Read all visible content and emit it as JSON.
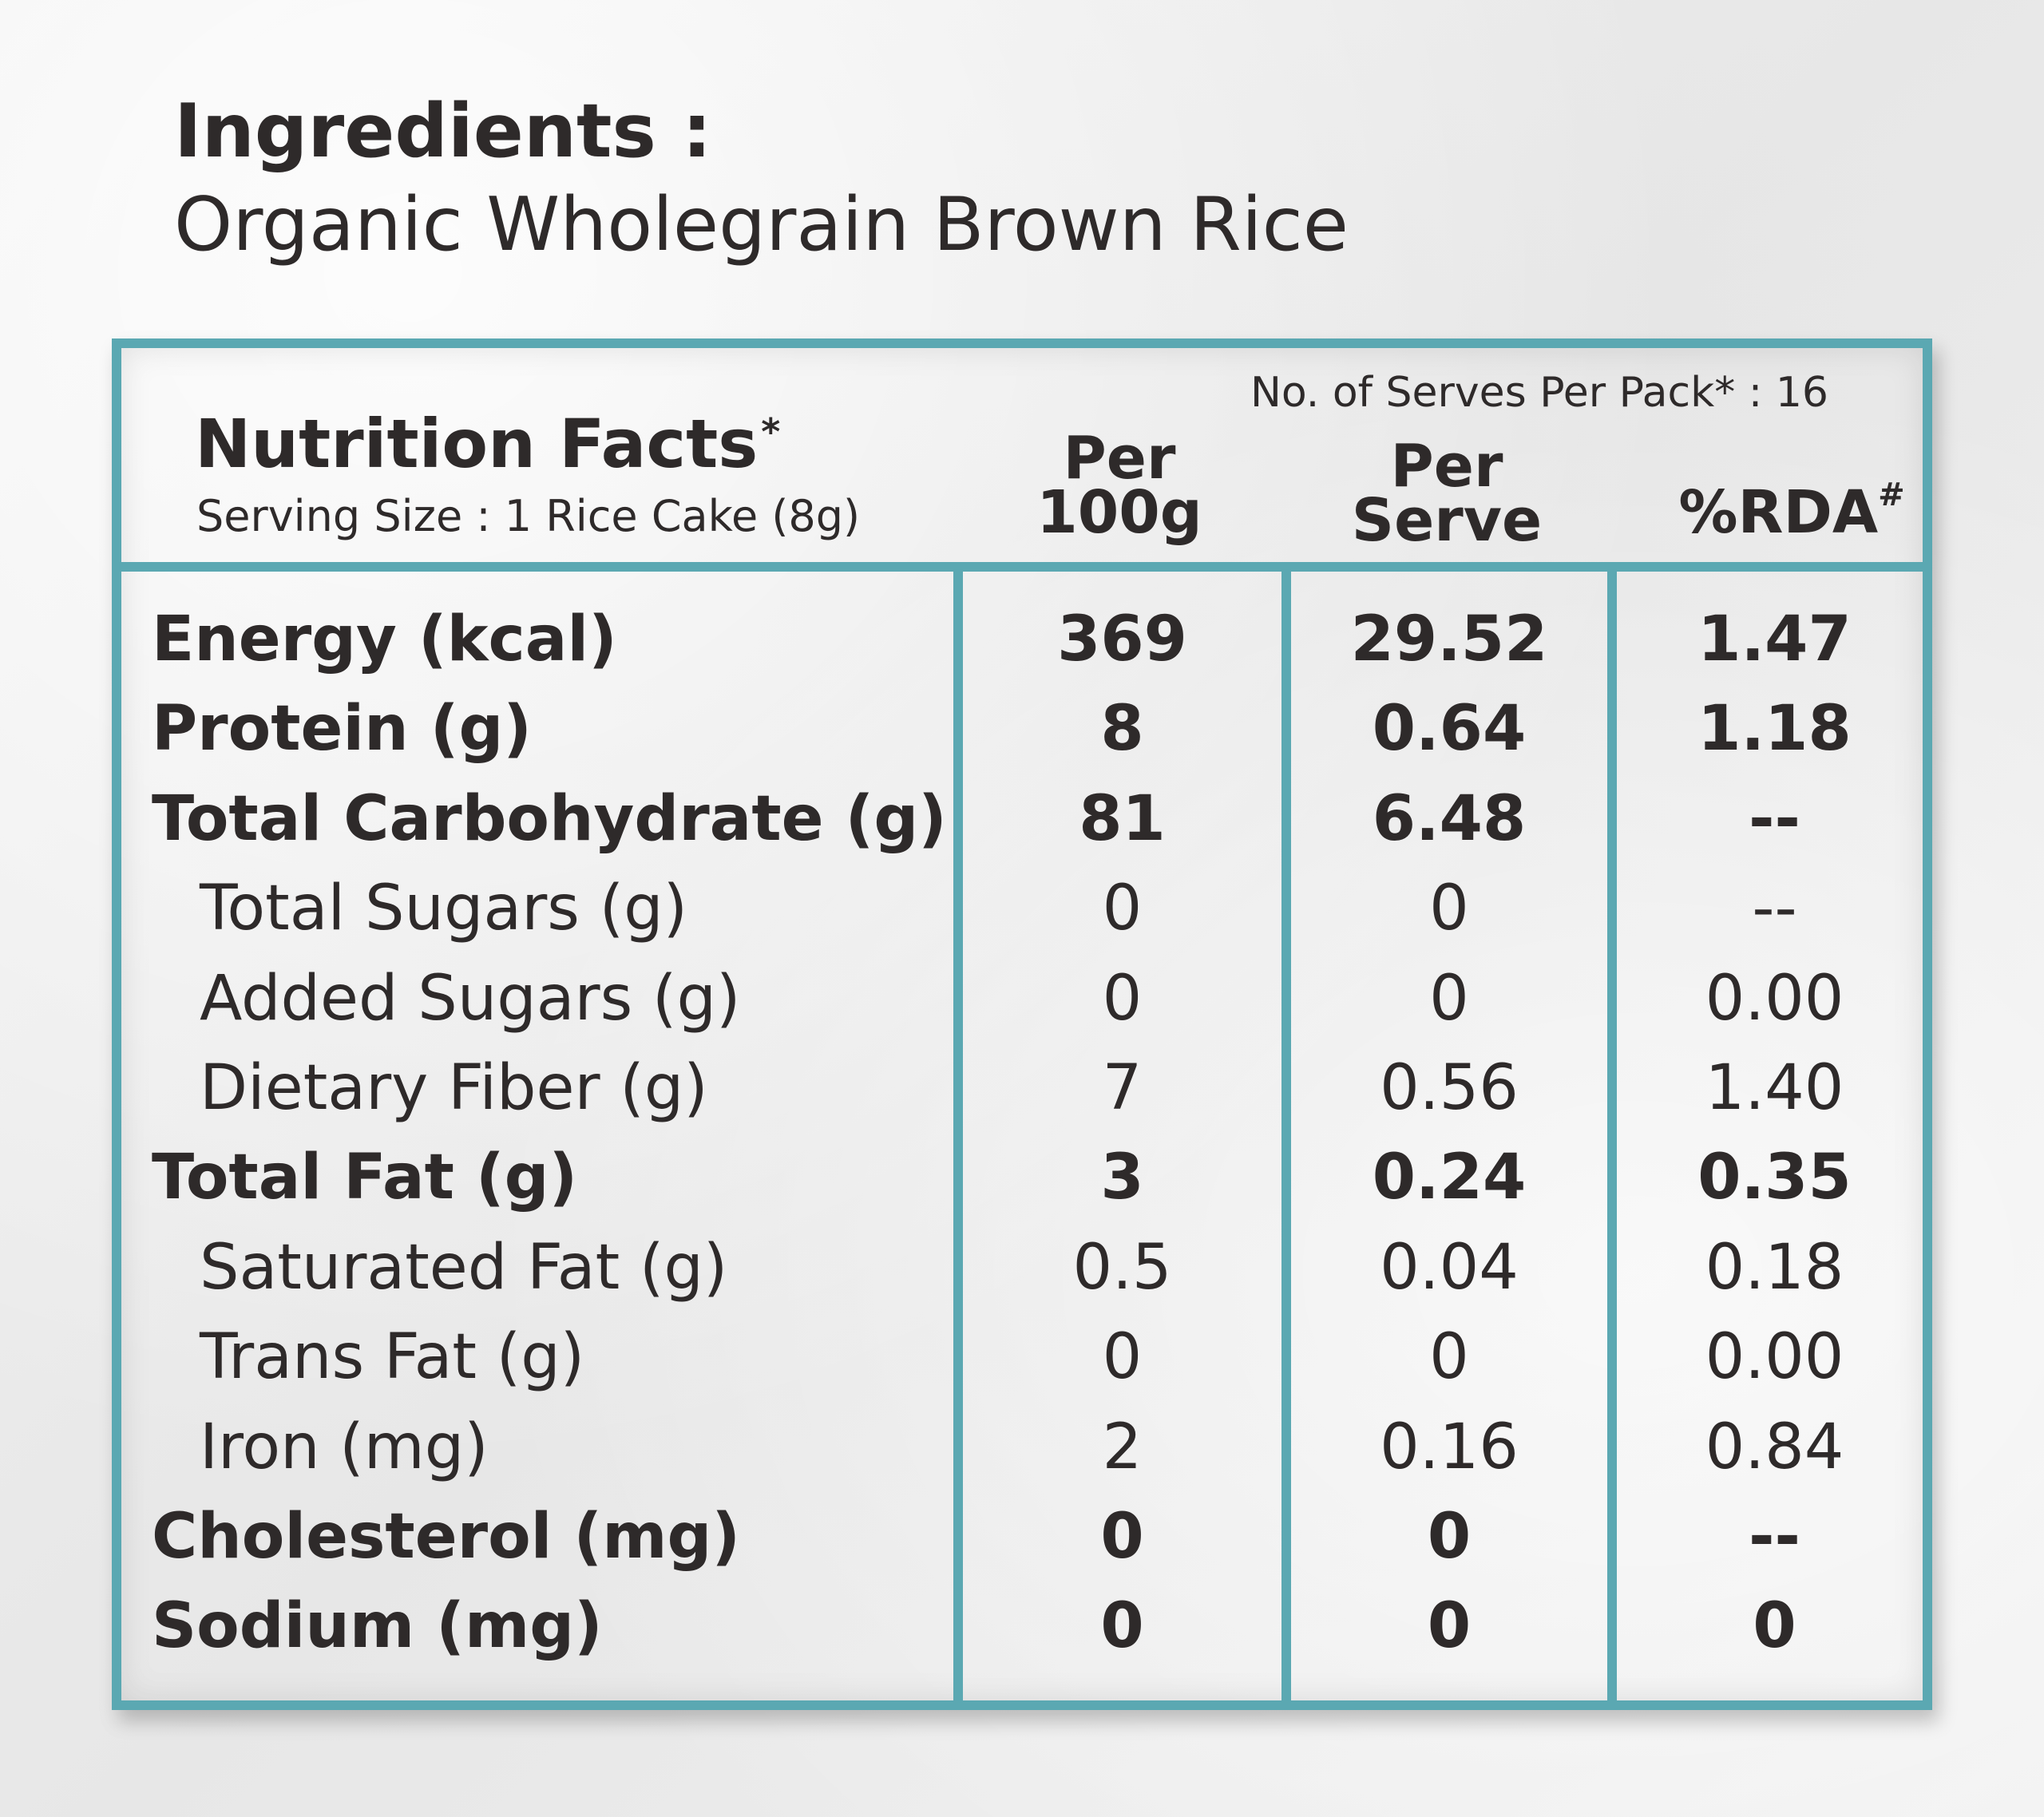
{
  "ingredients": {
    "heading": "Ingredients :",
    "value": "Organic Wholegrain Brown Rice"
  },
  "nutrition": {
    "title": "Nutrition Facts",
    "title_mark": "*",
    "serving_size": "Serving Size : 1 Rice Cake (8g)",
    "serves_per_pack": "No. of Serves Per Pack* : 16",
    "columns": {
      "per100_line1": "Per",
      "per100_line2": "100g",
      "serve_line1": "Per",
      "serve_line2": "Serve",
      "rda": "%RDA",
      "rda_mark": "#"
    },
    "colors": {
      "border": "#5ba8b2",
      "text": "#2e2a2a"
    },
    "rows": [
      {
        "label": "Energy (kcal)",
        "per100": "369",
        "perserve": "29.52",
        "rda": "1.47",
        "style": "bold"
      },
      {
        "label": "Protein (g)",
        "per100": "8",
        "perserve": "0.64",
        "rda": "1.18",
        "style": "bold"
      },
      {
        "label": "Total Carbohydrate (g)",
        "per100": "81",
        "perserve": "6.48",
        "rda": "--",
        "style": "bold"
      },
      {
        "label": "Total Sugars (g)",
        "per100": "0",
        "perserve": "0",
        "rda": "--",
        "style": "sub"
      },
      {
        "label": "Added Sugars (g)",
        "per100": "0",
        "perserve": "0",
        "rda": "0.00",
        "style": "sub"
      },
      {
        "label": "Dietary Fiber (g)",
        "per100": "7",
        "perserve": "0.56",
        "rda": "1.40",
        "style": "sub"
      },
      {
        "label": "Total Fat (g)",
        "per100": "3",
        "perserve": "0.24",
        "rda": "0.35",
        "style": "bold"
      },
      {
        "label": "Saturated Fat (g)",
        "per100": "0.5",
        "perserve": "0.04",
        "rda": "0.18",
        "style": "sub"
      },
      {
        "label": "Trans Fat (g)",
        "per100": "0",
        "perserve": "0",
        "rda": "0.00",
        "style": "sub"
      },
      {
        "label": "Iron (mg)",
        "per100": "2",
        "perserve": "0.16",
        "rda": "0.84",
        "style": "sub"
      },
      {
        "label": "Cholesterol (mg)",
        "per100": "0",
        "perserve": "0",
        "rda": "--",
        "style": "bold"
      },
      {
        "label": "Sodium (mg)",
        "per100": "0",
        "perserve": "0",
        "rda": "0",
        "style": "bold"
      }
    ]
  }
}
